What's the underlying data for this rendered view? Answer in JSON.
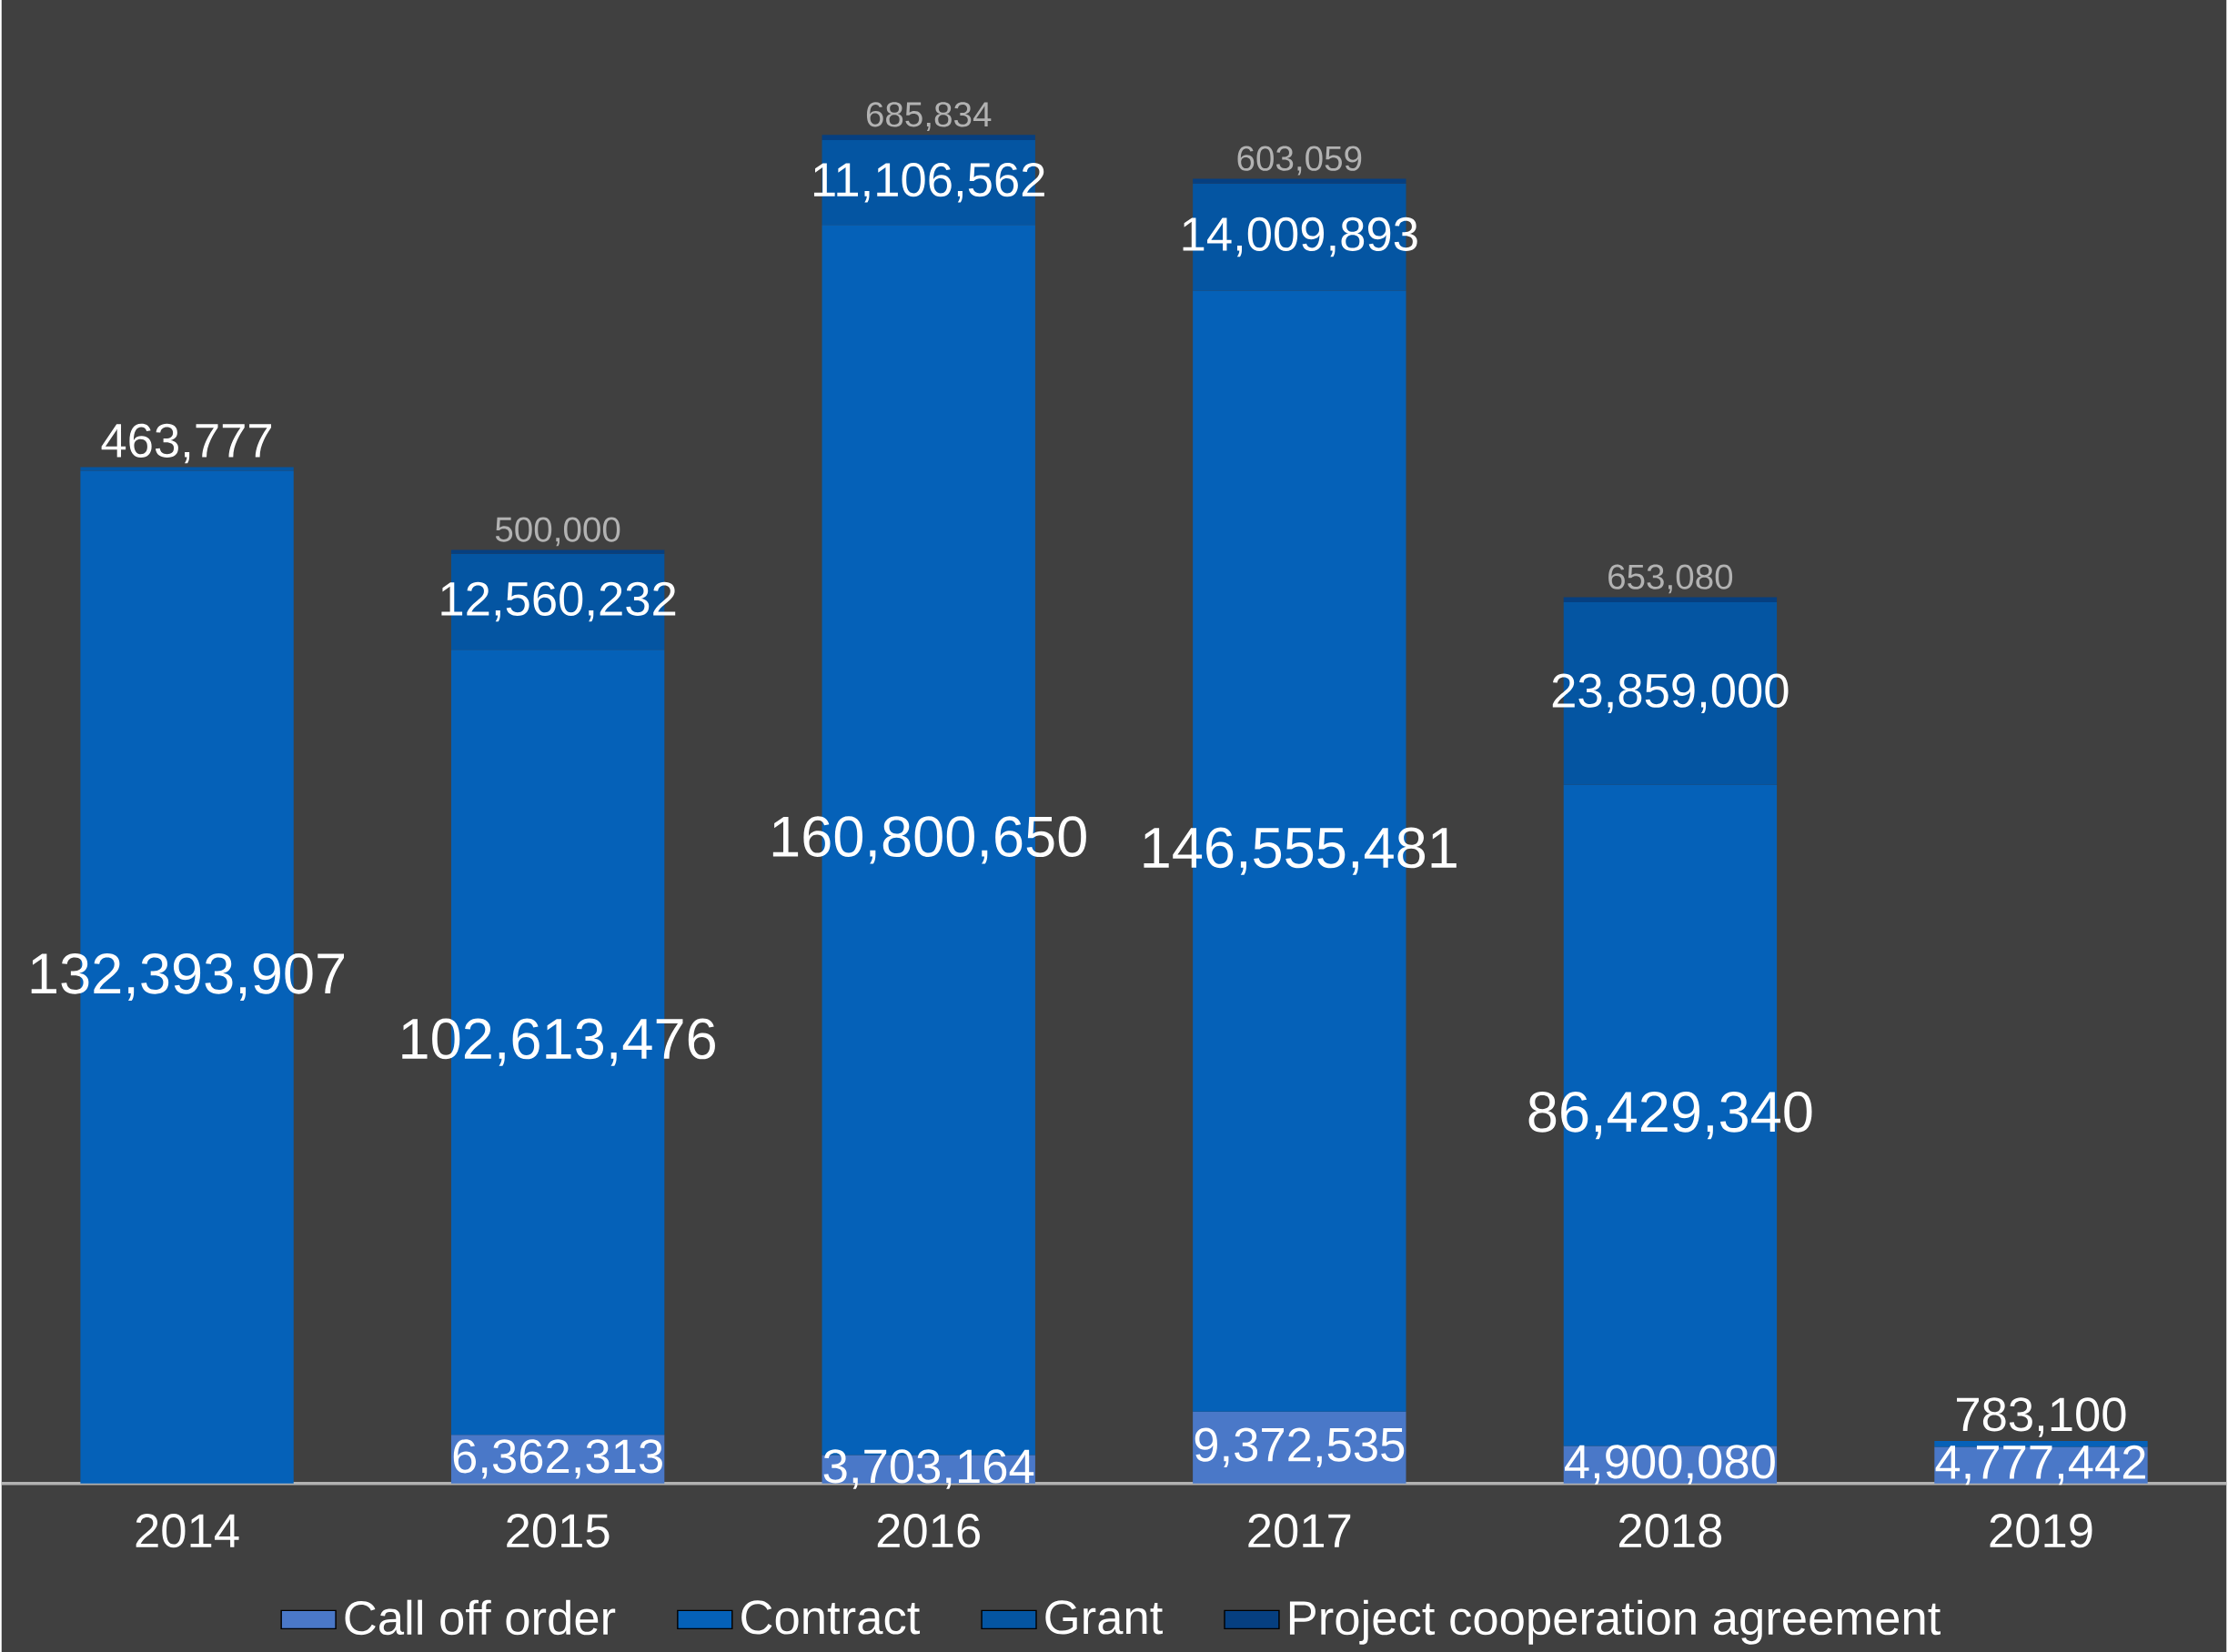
{
  "chart_data": {
    "type": "bar",
    "stacked": true,
    "legend": "bottom",
    "categories": [
      "2014",
      "2015",
      "2016",
      "2017",
      "2018",
      "2019"
    ],
    "series": [
      {
        "name": "Call off order",
        "color": "#4a78c8",
        "values": [
          null,
          6362313,
          3703164,
          9372535,
          4900080,
          4777442
        ],
        "value_labels": [
          null,
          "6,362,313",
          "3,703,164",
          "9,372,535",
          "4,900,080",
          "4,777,442"
        ]
      },
      {
        "name": "Contract",
        "color": "#0561b8",
        "values": [
          132393907,
          102613476,
          160800650,
          146555481,
          86429340,
          783100
        ],
        "value_labels": [
          "132,393,907",
          "102,613,476",
          "160,800,650",
          "146,555,481",
          "86,429,340",
          "783,100"
        ]
      },
      {
        "name": "Grant",
        "color": "#0455a2",
        "values": [
          463777,
          12560232,
          11106562,
          14009893,
          23859000,
          null
        ],
        "value_labels": [
          "463,777",
          "12,560,232",
          "11,106,562",
          "14,009,893",
          "23,859,000",
          null
        ]
      },
      {
        "name": "Project cooperation agreement",
        "color": "#063f80",
        "values": [
          null,
          500000,
          685834,
          603059,
          653080,
          null
        ],
        "value_labels": [
          null,
          "500,000",
          "685,834",
          "603,059",
          "653,080",
          null
        ]
      }
    ]
  }
}
